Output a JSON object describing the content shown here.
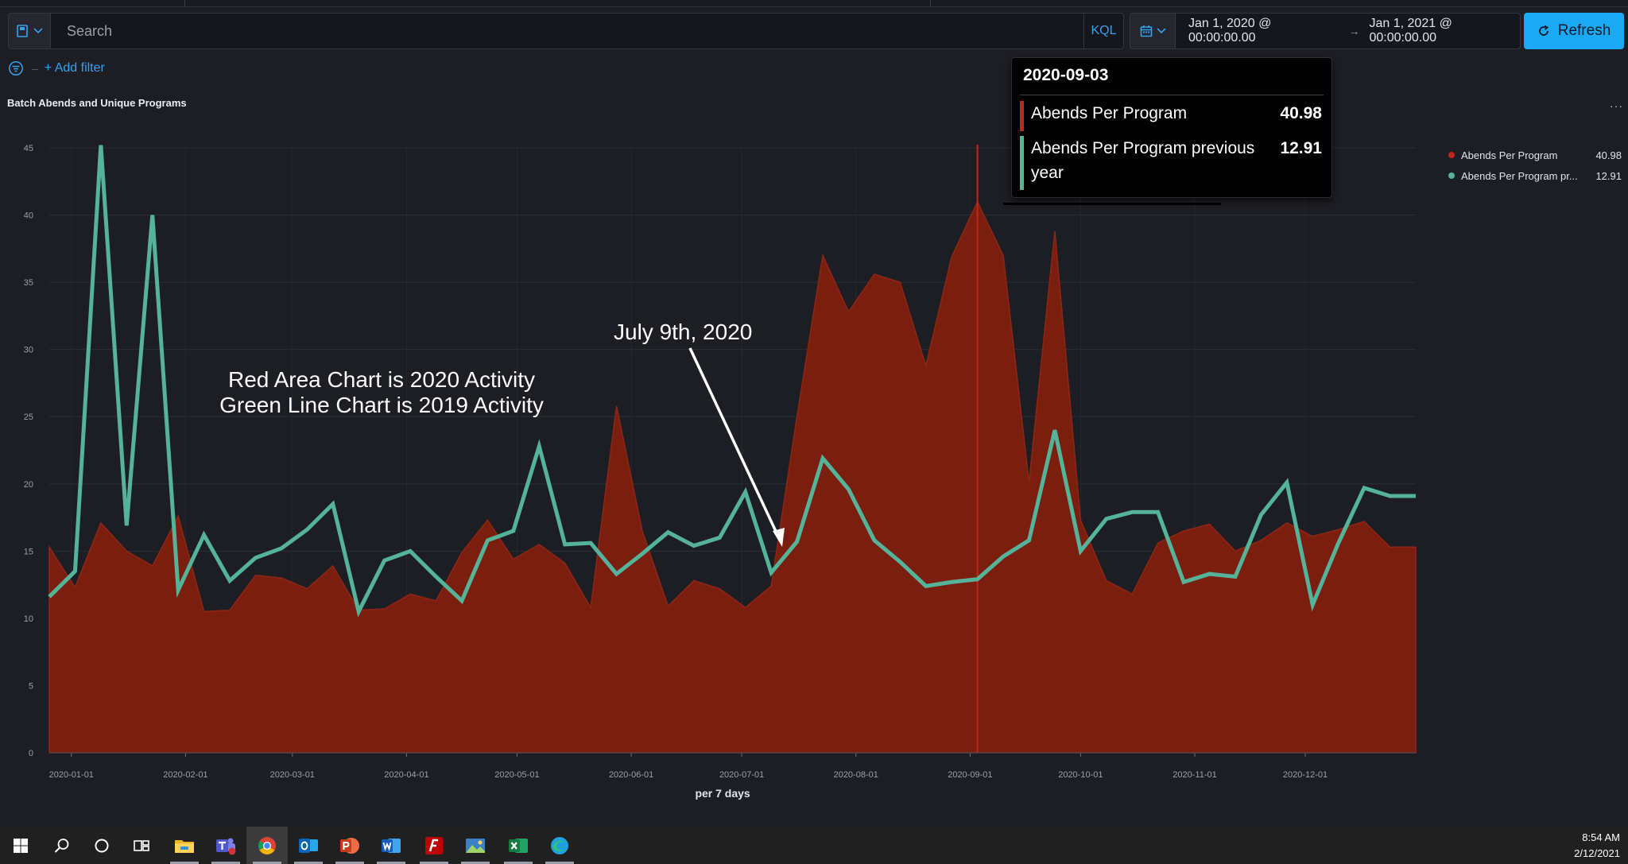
{
  "query_bar": {
    "search_placeholder": "Search",
    "language": "KQL",
    "date_start": "Jan 1, 2020 @ 00:00:00.00",
    "date_arrow": "→",
    "date_end": "Jan 1, 2021 @ 00:00:00.00",
    "refresh_label": "Refresh"
  },
  "filter_bar": {
    "add_filter_label": "+ Add filter"
  },
  "panel": {
    "title": "Batch Abends and Unique Programs",
    "menu": "···"
  },
  "tooltip": {
    "date": "2020-09-03",
    "rows": [
      {
        "name": "Abends Per Program",
        "value": "40.98"
      },
      {
        "name": "Abends Per Program previous year",
        "value": "12.91"
      }
    ]
  },
  "legend": {
    "items": [
      {
        "name": "Abends Per Program",
        "value": "40.98"
      },
      {
        "name": "Abends Per Program pr...",
        "value": "12.91"
      }
    ]
  },
  "annotations": {
    "legend_line1": "Red Area Chart is 2020 Activity",
    "legend_line2": "Green Line Chart is 2019 Activity",
    "callout": "July 9th, 2020"
  },
  "colors": {
    "area_fill": "#7a1e10",
    "area_edge": "#8f2615",
    "line": "#54b399",
    "accent": "#1ba9f5",
    "link": "#36a2ef"
  },
  "taskbar": {
    "apps": [
      "windows-start",
      "search",
      "cortana",
      "task-view",
      "file-explorer",
      "teams",
      "chrome",
      "outlook",
      "powerpoint",
      "word",
      "filezilla",
      "photos",
      "excel",
      "edge"
    ],
    "time": "8:54 AM",
    "date": "2/12/2021"
  },
  "chart_data": {
    "type": "area",
    "xlabel": "per 7 days",
    "ylim": [
      0,
      45
    ],
    "yticks": [
      0,
      5,
      10,
      15,
      20,
      25,
      30,
      35,
      40,
      45
    ],
    "xtick_labels": [
      "2020-01-01",
      "2020-02-01",
      "2020-03-01",
      "2020-04-01",
      "2020-05-01",
      "2020-06-01",
      "2020-07-01",
      "2020-08-01",
      "2020-09-01",
      "2020-10-01",
      "2020-11-01",
      "2020-12-01"
    ],
    "x_start": "2019-12-26",
    "x_end": "2020-12-31",
    "x": [
      "2019-12-26",
      "2020-01-02",
      "2020-01-09",
      "2020-01-16",
      "2020-01-23",
      "2020-01-30",
      "2020-02-06",
      "2020-02-13",
      "2020-02-20",
      "2020-02-27",
      "2020-03-05",
      "2020-03-12",
      "2020-03-19",
      "2020-03-26",
      "2020-04-02",
      "2020-04-09",
      "2020-04-16",
      "2020-04-23",
      "2020-04-30",
      "2020-05-07",
      "2020-05-14",
      "2020-05-21",
      "2020-05-28",
      "2020-06-04",
      "2020-06-11",
      "2020-06-18",
      "2020-06-25",
      "2020-07-02",
      "2020-07-09",
      "2020-07-16",
      "2020-07-23",
      "2020-07-30",
      "2020-08-06",
      "2020-08-13",
      "2020-08-20",
      "2020-08-27",
      "2020-09-03",
      "2020-09-10",
      "2020-09-17",
      "2020-09-24",
      "2020-10-01",
      "2020-10-08",
      "2020-10-15",
      "2020-10-22",
      "2020-10-29",
      "2020-11-05",
      "2020-11-12",
      "2020-11-19",
      "2020-11-26",
      "2020-12-03",
      "2020-12-10",
      "2020-12-17",
      "2020-12-24",
      "2020-12-31"
    ],
    "series": [
      {
        "name": "Abends Per Program",
        "render": "area",
        "values": [
          15.3,
          12.3,
          17.1,
          15.0,
          13.9,
          17.6,
          10.5,
          10.6,
          13.2,
          13.0,
          12.2,
          13.9,
          10.6,
          10.7,
          11.8,
          11.3,
          14.9,
          17.3,
          14.4,
          15.5,
          14.1,
          10.8,
          25.8,
          16.5,
          10.9,
          12.8,
          12.2,
          10.8,
          12.4,
          25.0,
          37.0,
          32.8,
          35.6,
          35.0,
          28.8,
          36.9,
          40.98,
          37.0,
          20.1,
          38.8,
          17.3,
          12.8,
          11.8,
          15.6,
          16.5,
          17.0,
          15.0,
          15.8,
          17.1,
          16.1,
          16.6,
          17.2,
          15.3,
          15.3
        ]
      },
      {
        "name": "Abends Per Program previous year",
        "render": "line",
        "values": [
          11.6,
          13.5,
          45.2,
          16.9,
          40.0,
          12.1,
          16.2,
          12.8,
          14.5,
          15.2,
          16.6,
          18.5,
          10.5,
          14.3,
          15.0,
          13.1,
          11.3,
          15.8,
          16.5,
          22.8,
          15.5,
          15.6,
          13.3,
          14.8,
          16.4,
          15.4,
          16.0,
          19.4,
          13.4,
          15.7,
          21.9,
          19.6,
          15.8,
          14.2,
          12.4,
          12.7,
          12.91,
          14.6,
          15.8,
          24.0,
          15.0,
          17.4,
          17.9,
          17.9,
          12.7,
          13.3,
          13.1,
          17.7,
          20.1,
          11.0,
          15.6,
          19.7,
          19.1,
          19.1
        ]
      }
    ],
    "highlight_x": "2020-09-03"
  }
}
